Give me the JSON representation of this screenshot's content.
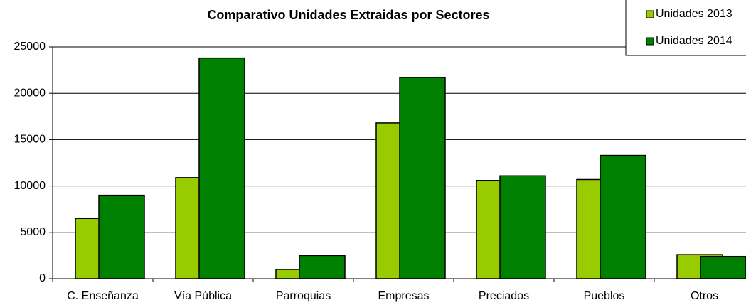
{
  "chart_data": {
    "type": "bar",
    "title": "Comparativo Unidades Extraidas por Sectores",
    "categories": [
      "C. Enseñanza",
      "Vía Pública",
      "Parroquias",
      "Empresas",
      "Preciados",
      "Pueblos",
      "Otros"
    ],
    "series": [
      {
        "name": "Unidades 2013",
        "color": "#99cc00",
        "values": [
          6500,
          10900,
          1000,
          16800,
          10600,
          10700,
          2600
        ]
      },
      {
        "name": "Unidades 2014",
        "color": "#008000",
        "values": [
          9000,
          23800,
          2500,
          21700,
          11100,
          13300,
          2400
        ]
      }
    ],
    "ylim": [
      0,
      25000
    ],
    "yticks": [
      0,
      5000,
      10000,
      15000,
      20000,
      25000
    ],
    "grid": true,
    "legend": "top-right"
  }
}
